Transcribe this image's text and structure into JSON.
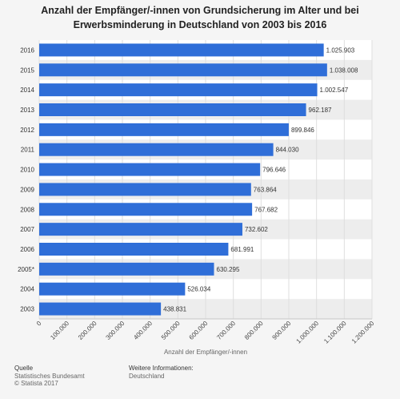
{
  "title": "Anzahl der Empfänger/-innen von Grundsicherung im Alter und bei Erwerbsminderung in Deutschland von 2003 bis 2016",
  "footer": {
    "source_heading": "Quelle",
    "source_line1": "Statistisches Bundesamt",
    "source_line2": "© Statista 2017",
    "info_heading": "Weitere Informationen:",
    "info_line1": "Deutschland"
  },
  "colors": {
    "bar": "#2f6ed8",
    "grid": "#dedede",
    "band": "#ededed"
  },
  "chart_data": {
    "type": "bar",
    "orientation": "horizontal",
    "categories": [
      "2016",
      "2015",
      "2014",
      "2013",
      "2012",
      "2011",
      "2010",
      "2009",
      "2008",
      "2007",
      "2006",
      "2005*",
      "2004",
      "2003"
    ],
    "values": [
      1025903,
      1038008,
      1002547,
      962187,
      899846,
      844030,
      796646,
      763864,
      767682,
      732602,
      681991,
      630295,
      526034,
      438831
    ],
    "value_labels": [
      "1.025.903",
      "1.038.008",
      "1.002.547",
      "962.187",
      "899.846",
      "844.030",
      "796.646",
      "763.864",
      "767.682",
      "732.602",
      "681.991",
      "630.295",
      "526.034",
      "438.831"
    ],
    "xlabel": "Anzahl der Empfänger/-innen",
    "xlim": [
      0,
      1200000
    ],
    "xticks": [
      0,
      100000,
      200000,
      300000,
      400000,
      500000,
      600000,
      700000,
      800000,
      900000,
      1000000,
      1100000,
      1200000
    ],
    "xtick_labels": [
      "0",
      "100.000",
      "200.000",
      "300.000",
      "400.000",
      "500.000",
      "600.000",
      "700.000",
      "800.000",
      "900.000",
      "1.000.000",
      "1.100.000",
      "1.200.000"
    ],
    "grid": true
  }
}
